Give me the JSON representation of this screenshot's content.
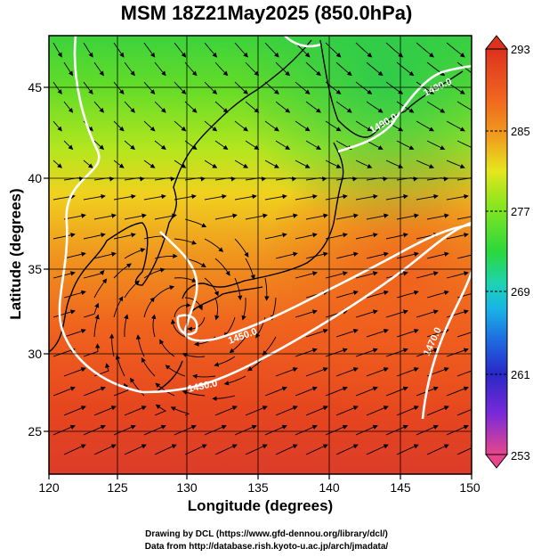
{
  "title": "MSM 18Z21May2025 (850.0hPa)",
  "x_axis": {
    "label": "Longitude (degrees)",
    "ticks": [
      "120",
      "125",
      "130",
      "135",
      "140",
      "145",
      "150"
    ]
  },
  "y_axis": {
    "label": "Latitude  (degrees)",
    "ticks": [
      "25",
      "30",
      "35",
      "40",
      "45"
    ]
  },
  "colorbar": {
    "ticks": [
      "293",
      "285",
      "277",
      "269",
      "261",
      "253"
    ],
    "colors": [
      "#e8468c",
      "#c82fc8",
      "#7a2ad8",
      "#2828c8",
      "#1e6ae0",
      "#18b4e6",
      "#1ed2b4",
      "#2ad83c",
      "#8ee61e",
      "#e6e61e",
      "#f0a01e",
      "#f05a1e",
      "#dc321e"
    ]
  },
  "contour_labels": [
    "1490.0",
    "1490.0",
    "1450.0",
    "1430.0",
    "1470.0"
  ],
  "credits": [
    "Drawing by DCL (https://www.gfd-dennou.org/library/dcl/)",
    "Data from http://database.rish.kyoto-u.ac.jp/arch/jmadata/"
  ]
}
